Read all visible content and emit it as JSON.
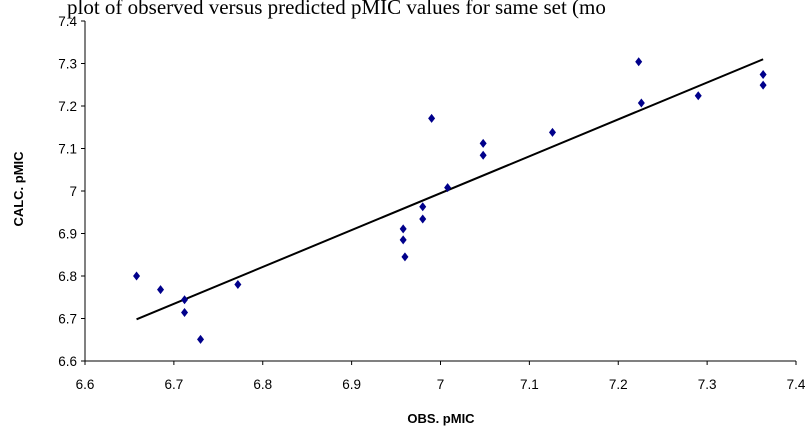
{
  "caption": "plot of observed versus predicted pMIC values for same set (mo",
  "chart_data": {
    "type": "scatter",
    "title": "",
    "xlabel": "OBS. pMIC",
    "ylabel": "CALC. pMIC",
    "xlim": [
      6.6,
      7.4
    ],
    "ylim": [
      6.6,
      7.4
    ],
    "x_ticks": [
      "6.6",
      "6.7",
      "6.8",
      "6.9",
      "7",
      "7.1",
      "7.2",
      "7.3",
      "7.4"
    ],
    "y_ticks": [
      "6.6",
      "6.7",
      "6.8",
      "6.9",
      "7",
      "7.1",
      "7.2",
      "7.3",
      "7.4"
    ],
    "grid": false,
    "legend": "none",
    "marker": "diamond",
    "marker_color": "#00008b",
    "line_color": "#000000",
    "series": [
      {
        "points": [
          {
            "x": 6.658,
            "y": 6.8
          },
          {
            "x": 6.685,
            "y": 6.768
          },
          {
            "x": 6.712,
            "y": 6.744
          },
          {
            "x": 6.712,
            "y": 6.714
          },
          {
            "x": 6.73,
            "y": 6.651
          },
          {
            "x": 6.772,
            "y": 6.78
          },
          {
            "x": 6.958,
            "y": 6.911
          },
          {
            "x": 6.958,
            "y": 6.885
          },
          {
            "x": 6.96,
            "y": 6.845
          },
          {
            "x": 6.98,
            "y": 6.963
          },
          {
            "x": 6.98,
            "y": 6.934
          },
          {
            "x": 6.99,
            "y": 7.171
          },
          {
            "x": 7.008,
            "y": 7.008
          },
          {
            "x": 7.048,
            "y": 7.112
          },
          {
            "x": 7.048,
            "y": 7.084
          },
          {
            "x": 7.126,
            "y": 7.138
          },
          {
            "x": 7.223,
            "y": 7.304
          },
          {
            "x": 7.226,
            "y": 7.207
          },
          {
            "x": 7.29,
            "y": 7.224
          },
          {
            "x": 7.363,
            "y": 7.274
          },
          {
            "x": 7.363,
            "y": 7.249
          }
        ]
      }
    ],
    "trendline": {
      "x": [
        6.658,
        7.363
      ],
      "y": [
        6.698,
        7.31
      ]
    }
  }
}
